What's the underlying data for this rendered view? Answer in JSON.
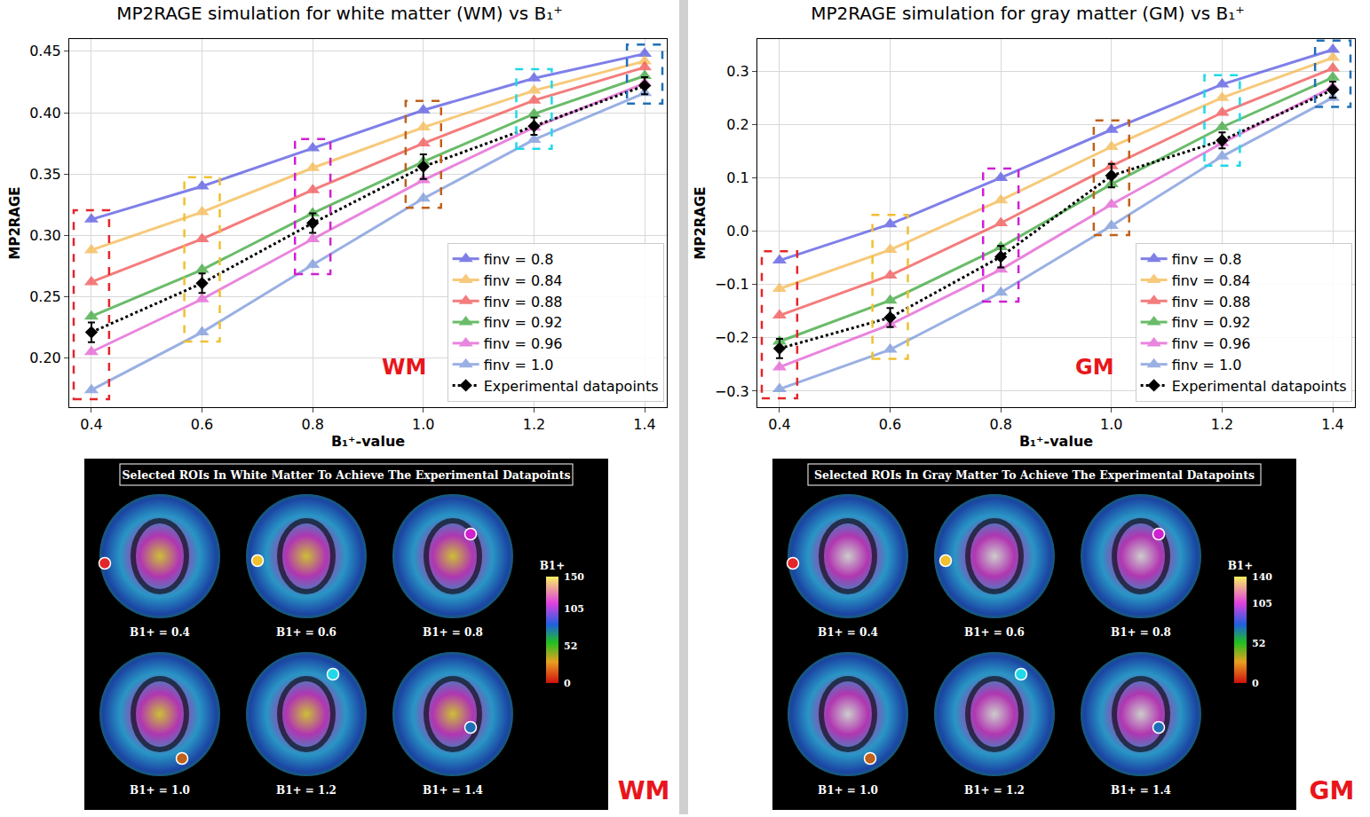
{
  "chart_data": [
    {
      "type": "line",
      "title": "MP2RAGE simulation for white matter (WM) vs B₁⁺",
      "xlabel": "B₁⁺-value",
      "ylabel": "MP2RAGE",
      "annotation": "WM",
      "x": [
        0.4,
        0.6,
        0.8,
        1.0,
        1.2,
        1.4
      ],
      "xlim": [
        0.36,
        1.44
      ],
      "xticks": [
        0.4,
        0.6,
        0.8,
        {
          "value": 1.0,
          "label": "1.0"
        },
        1.2,
        1.4
      ],
      "ylim": [
        0.16,
        0.46
      ],
      "yticks": [
        {
          "value": 0.2,
          "label": "0.20"
        },
        0.25,
        {
          "value": 0.3,
          "label": "0.30"
        },
        0.35,
        {
          "value": 0.4,
          "label": "0.40"
        },
        0.45
      ],
      "grid": true,
      "legend": "lower right",
      "series": [
        {
          "name": "finv = 0.8",
          "color": "#4a4ae0",
          "marker": "triangle-up",
          "line_style": "solid",
          "values": [
            0.313,
            0.34,
            0.371,
            0.402,
            0.428,
            0.448
          ]
        },
        {
          "name": "finv = 0.84",
          "color": "#f5b342",
          "marker": "triangle-up",
          "line_style": "solid",
          "values": [
            0.288,
            0.319,
            0.355,
            0.388,
            0.418,
            0.442
          ]
        },
        {
          "name": "finv = 0.88",
          "color": "#f04545",
          "marker": "triangle-up",
          "line_style": "solid",
          "values": [
            0.262,
            0.297,
            0.337,
            0.375,
            0.41,
            0.437
          ]
        },
        {
          "name": "finv = 0.92",
          "color": "#2ca02c",
          "marker": "triangle-up",
          "line_style": "solid",
          "values": [
            0.234,
            0.272,
            0.318,
            0.36,
            0.399,
            0.43
          ]
        },
        {
          "name": "finv = 0.96",
          "color": "#e052d0",
          "marker": "triangle-up",
          "line_style": "solid",
          "values": [
            0.205,
            0.248,
            0.297,
            0.345,
            0.388,
            0.424
          ]
        },
        {
          "name": "finv = 1.0",
          "color": "#6f8fd8",
          "marker": "triangle-up",
          "line_style": "solid",
          "values": [
            0.174,
            0.221,
            0.276,
            0.33,
            0.378,
            0.416
          ]
        },
        {
          "name": "Experimental datapoints",
          "color": "#000000",
          "marker": "diamond",
          "line_style": "dot",
          "values": [
            0.221,
            0.261,
            0.31,
            0.356,
            0.389,
            0.422
          ],
          "error": [
            0.008,
            0.008,
            0.008,
            0.01,
            0.007,
            0.007
          ]
        }
      ]
    },
    {
      "type": "line",
      "title": "MP2RAGE simulation for gray matter (GM) vs B₁⁺",
      "xlabel": "B₁⁺-value",
      "ylabel": "MP2RAGE",
      "annotation": "GM",
      "x": [
        0.4,
        0.6,
        0.8,
        1.0,
        1.2,
        1.4
      ],
      "xlim": [
        0.36,
        1.44
      ],
      "xticks": [
        0.4,
        0.6,
        0.8,
        {
          "value": 1.0,
          "label": "1.0"
        },
        1.2,
        1.4
      ],
      "ylim": [
        -0.33,
        0.36
      ],
      "yticks": [
        {
          "value": -0.3,
          "label": "−0.3"
        },
        {
          "value": -0.2,
          "label": "−0.2"
        },
        {
          "value": -0.1,
          "label": "−0.1"
        },
        {
          "value": 0.0,
          "label": "0.0"
        },
        0.1,
        0.2,
        0.3
      ],
      "grid": true,
      "legend": "lower right",
      "series": [
        {
          "name": "finv = 0.8",
          "color": "#4a4ae0",
          "marker": "triangle-up",
          "line_style": "solid",
          "values": [
            -0.055,
            0.013,
            0.1,
            0.19,
            0.275,
            0.34
          ]
        },
        {
          "name": "finv = 0.84",
          "color": "#f5b342",
          "marker": "triangle-up",
          "line_style": "solid",
          "values": [
            -0.108,
            -0.035,
            0.058,
            0.158,
            0.25,
            0.325
          ]
        },
        {
          "name": "finv = 0.88",
          "color": "#f04545",
          "marker": "triangle-up",
          "line_style": "solid",
          "values": [
            -0.158,
            -0.083,
            0.015,
            0.122,
            0.222,
            0.305
          ]
        },
        {
          "name": "finv = 0.92",
          "color": "#2ca02c",
          "marker": "triangle-up",
          "line_style": "solid",
          "values": [
            -0.207,
            -0.13,
            -0.03,
            0.088,
            0.195,
            0.288
          ]
        },
        {
          "name": "finv = 0.96",
          "color": "#e052d0",
          "marker": "triangle-up",
          "line_style": "solid",
          "values": [
            -0.255,
            -0.175,
            -0.072,
            0.05,
            0.165,
            0.27
          ]
        },
        {
          "name": "finv = 1.0",
          "color": "#6f8fd8",
          "marker": "triangle-up",
          "line_style": "solid",
          "values": [
            -0.296,
            -0.222,
            -0.115,
            0.01,
            0.14,
            0.25
          ]
        },
        {
          "name": "Experimental datapoints",
          "color": "#000000",
          "marker": "diamond",
          "line_style": "dot",
          "values": [
            -0.22,
            -0.162,
            -0.048,
            0.104,
            0.17,
            0.265
          ],
          "error": [
            0.018,
            0.018,
            0.02,
            0.022,
            0.015,
            0.015
          ]
        }
      ]
    }
  ],
  "roi_panels": [
    {
      "title": "Selected ROIs In White Matter To Achieve The Experimental Datapoints",
      "tag": "WM",
      "cells": [
        {
          "label": "B1+ = 0.4",
          "color": "#e3262b"
        },
        {
          "label": "B1+ = 0.6",
          "color": "#f0c030"
        },
        {
          "label": "B1+ = 0.8",
          "color": "#d020d0"
        },
        {
          "label": "B1+ = 1.0",
          "color": "#c0601a"
        },
        {
          "label": "B1+ = 1.2",
          "color": "#20d8e8"
        },
        {
          "label": "B1+ = 1.4",
          "color": "#1f6fb8"
        }
      ],
      "colorbar": {
        "title": "B1+",
        "ticks": [
          150,
          105,
          52,
          0
        ]
      }
    },
    {
      "title": "Selected ROIs In Gray Matter To Achieve The Experimental Datapoints",
      "tag": "GM",
      "cells": [
        {
          "label": "B1+ = 0.4",
          "color": "#e3262b"
        },
        {
          "label": "B1+ = 0.6",
          "color": "#f0c030"
        },
        {
          "label": "B1+ = 0.8",
          "color": "#d020d0"
        },
        {
          "label": "B1+ = 1.0",
          "color": "#c0601a"
        },
        {
          "label": "B1+ = 1.2",
          "color": "#20d8e8"
        },
        {
          "label": "B1+ = 1.4",
          "color": "#1f6fb8"
        }
      ],
      "colorbar": {
        "title": "B1+",
        "ticks": [
          140,
          105,
          52,
          0
        ]
      }
    }
  ]
}
